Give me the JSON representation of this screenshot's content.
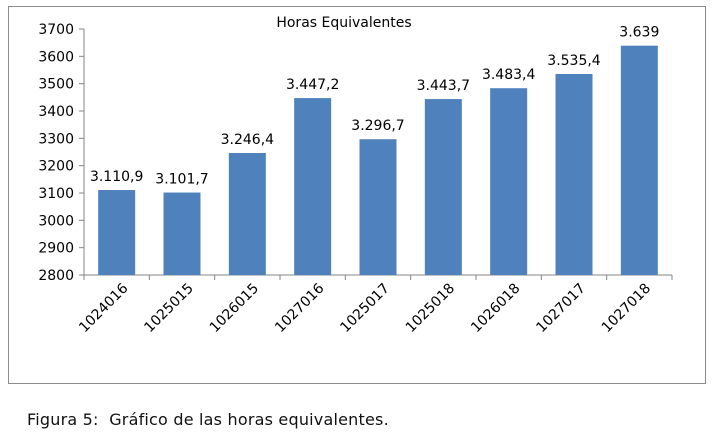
{
  "chart_data": {
    "type": "bar",
    "title": "Horas Equivalentes",
    "categories": [
      "1024016",
      "1025015",
      "1026015",
      "1027016",
      "1025017",
      "1025018",
      "1026018",
      "1027017",
      "1027018"
    ],
    "values": [
      3110.9,
      3101.7,
      3246.4,
      3447.2,
      3296.7,
      3443.7,
      3483.4,
      3535.4,
      3639
    ],
    "data_labels": [
      "3.110,9",
      "3.101,7",
      "3.246,4",
      "3.447,2",
      "3.296,7",
      "3.443,7",
      "3.483,4",
      "3.535,4",
      "3.639"
    ],
    "ylim": [
      2800,
      3700
    ],
    "yticks": [
      2800,
      2900,
      3000,
      3100,
      3200,
      3300,
      3400,
      3500,
      3600,
      3700
    ],
    "xlabel": "",
    "ylabel": "",
    "grid": false,
    "legend": "none",
    "bar_color": "#4f81bd"
  },
  "caption": {
    "label": "Figura 5:",
    "text": "Gráfico de las horas equivalentes."
  }
}
